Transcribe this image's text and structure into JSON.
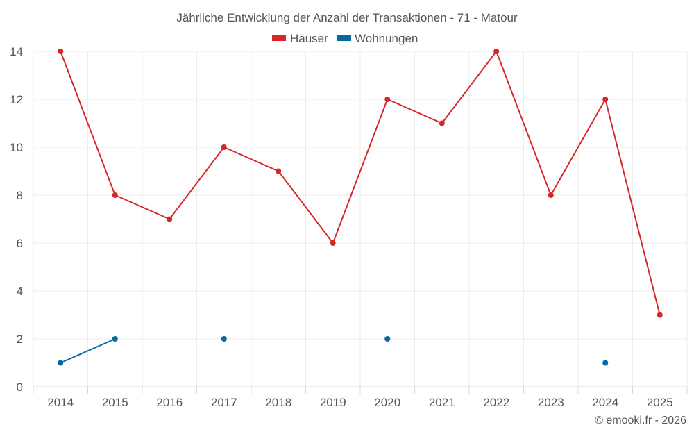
{
  "chart_data": {
    "type": "line",
    "title": "Jährliche Entwicklung der Anzahl der Transaktionen - 71 - Matour",
    "categories": [
      "2014",
      "2015",
      "2016",
      "2017",
      "2018",
      "2019",
      "2020",
      "2021",
      "2022",
      "2023",
      "2024",
      "2025"
    ],
    "ylim": [
      0,
      14
    ],
    "yticks": [
      0,
      2,
      4,
      6,
      8,
      10,
      12,
      14
    ],
    "grid": true,
    "legend_position": "top-center",
    "series": [
      {
        "name": "Häuser",
        "color": "#d62728",
        "values": [
          14,
          8,
          7,
          10,
          9,
          6,
          12,
          11,
          14,
          8,
          12,
          3
        ]
      },
      {
        "name": "Wohnungen",
        "color": "#0868a0",
        "values": [
          1,
          2,
          null,
          2,
          null,
          null,
          2,
          null,
          null,
          null,
          1,
          null
        ]
      }
    ]
  },
  "credit": "© emooki.fr - 2026"
}
